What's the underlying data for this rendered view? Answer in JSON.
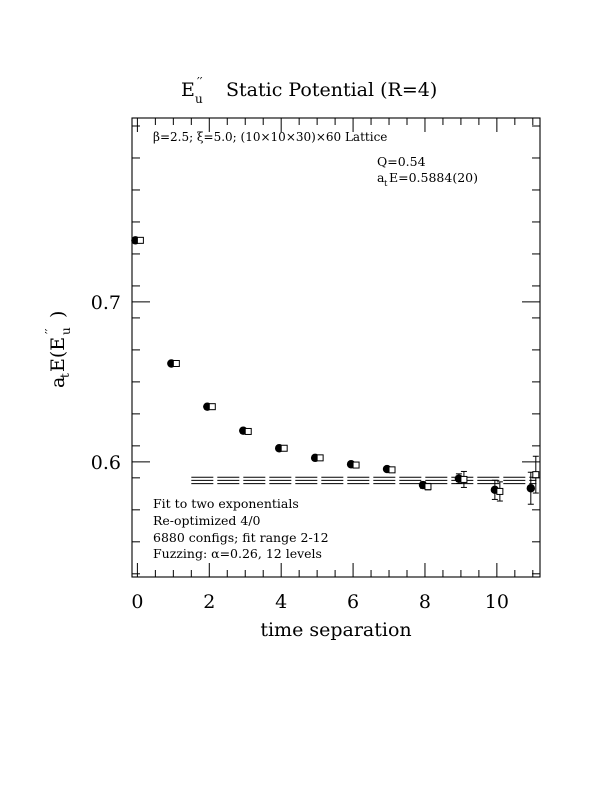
{
  "chart_data": {
    "type": "scatter",
    "title": {
      "state": "E",
      "state_sup": "′′",
      "state_sub": "u",
      "text": "Static Potential (R=4)"
    },
    "xlabel": "time separation",
    "ylabel": {
      "prefix": "a",
      "prefix_sub": "t",
      "main": "E(E",
      "main_sup": "′′",
      "main_sub": "u",
      "suffix": ")"
    },
    "xlim": [
      -0.15,
      11.2
    ],
    "ylim": [
      0.528,
      0.815
    ],
    "x_ticks": [
      0,
      2,
      4,
      6,
      8,
      10
    ],
    "x_tick_labels": [
      "0",
      "2",
      "4",
      "6",
      "8",
      "10"
    ],
    "y_ticks": [
      0.6,
      0.7
    ],
    "y_tick_labels": [
      "0.6",
      "0.7"
    ],
    "grid": false,
    "lattice_info": "β=2.5; ξ=5.0; (10×10×30)×60 Lattice",
    "fit_stats": {
      "q": "Q=0.54",
      "energy_prefix": "a",
      "energy_sub": "t",
      "energy_value": "E=0.5884(20)"
    },
    "annotations": [
      "Fit to two exponentials",
      "Re-optimized 4/0",
      "6880 configs; fit range 2-12",
      "Fuzzing: α=0.26, 12 levels"
    ],
    "series": [
      {
        "marker": "filled-circle",
        "x": [
          0,
          1,
          2,
          3,
          4,
          5,
          6,
          7,
          8,
          9,
          10,
          11
        ],
        "y": [
          0.7385,
          0.6615,
          0.6345,
          0.6195,
          0.6085,
          0.6025,
          0.5985,
          0.5955,
          0.5855,
          0.5895,
          0.5825,
          0.5835
        ],
        "err": [
          0.0006,
          0.0006,
          0.0006,
          0.0007,
          0.0008,
          0.0009,
          0.001,
          0.0013,
          0.002,
          0.003,
          0.006,
          0.01
        ]
      },
      {
        "marker": "open-square",
        "x": [
          0,
          1,
          2,
          3,
          4,
          5,
          6,
          7,
          8,
          9,
          10,
          11
        ],
        "y": [
          0.7385,
          0.6615,
          0.6345,
          0.619,
          0.6085,
          0.6025,
          0.598,
          0.595,
          0.5845,
          0.589,
          0.5815,
          0.592
        ],
        "err": [
          0.0006,
          0.0006,
          0.0006,
          0.0007,
          0.0008,
          0.0009,
          0.001,
          0.0013,
          0.002,
          0.005,
          0.006,
          0.0115
        ]
      }
    ],
    "fit": {
      "x_start": 1.5,
      "x_end": 11.1,
      "value": 0.5884,
      "error": 0.002
    }
  }
}
